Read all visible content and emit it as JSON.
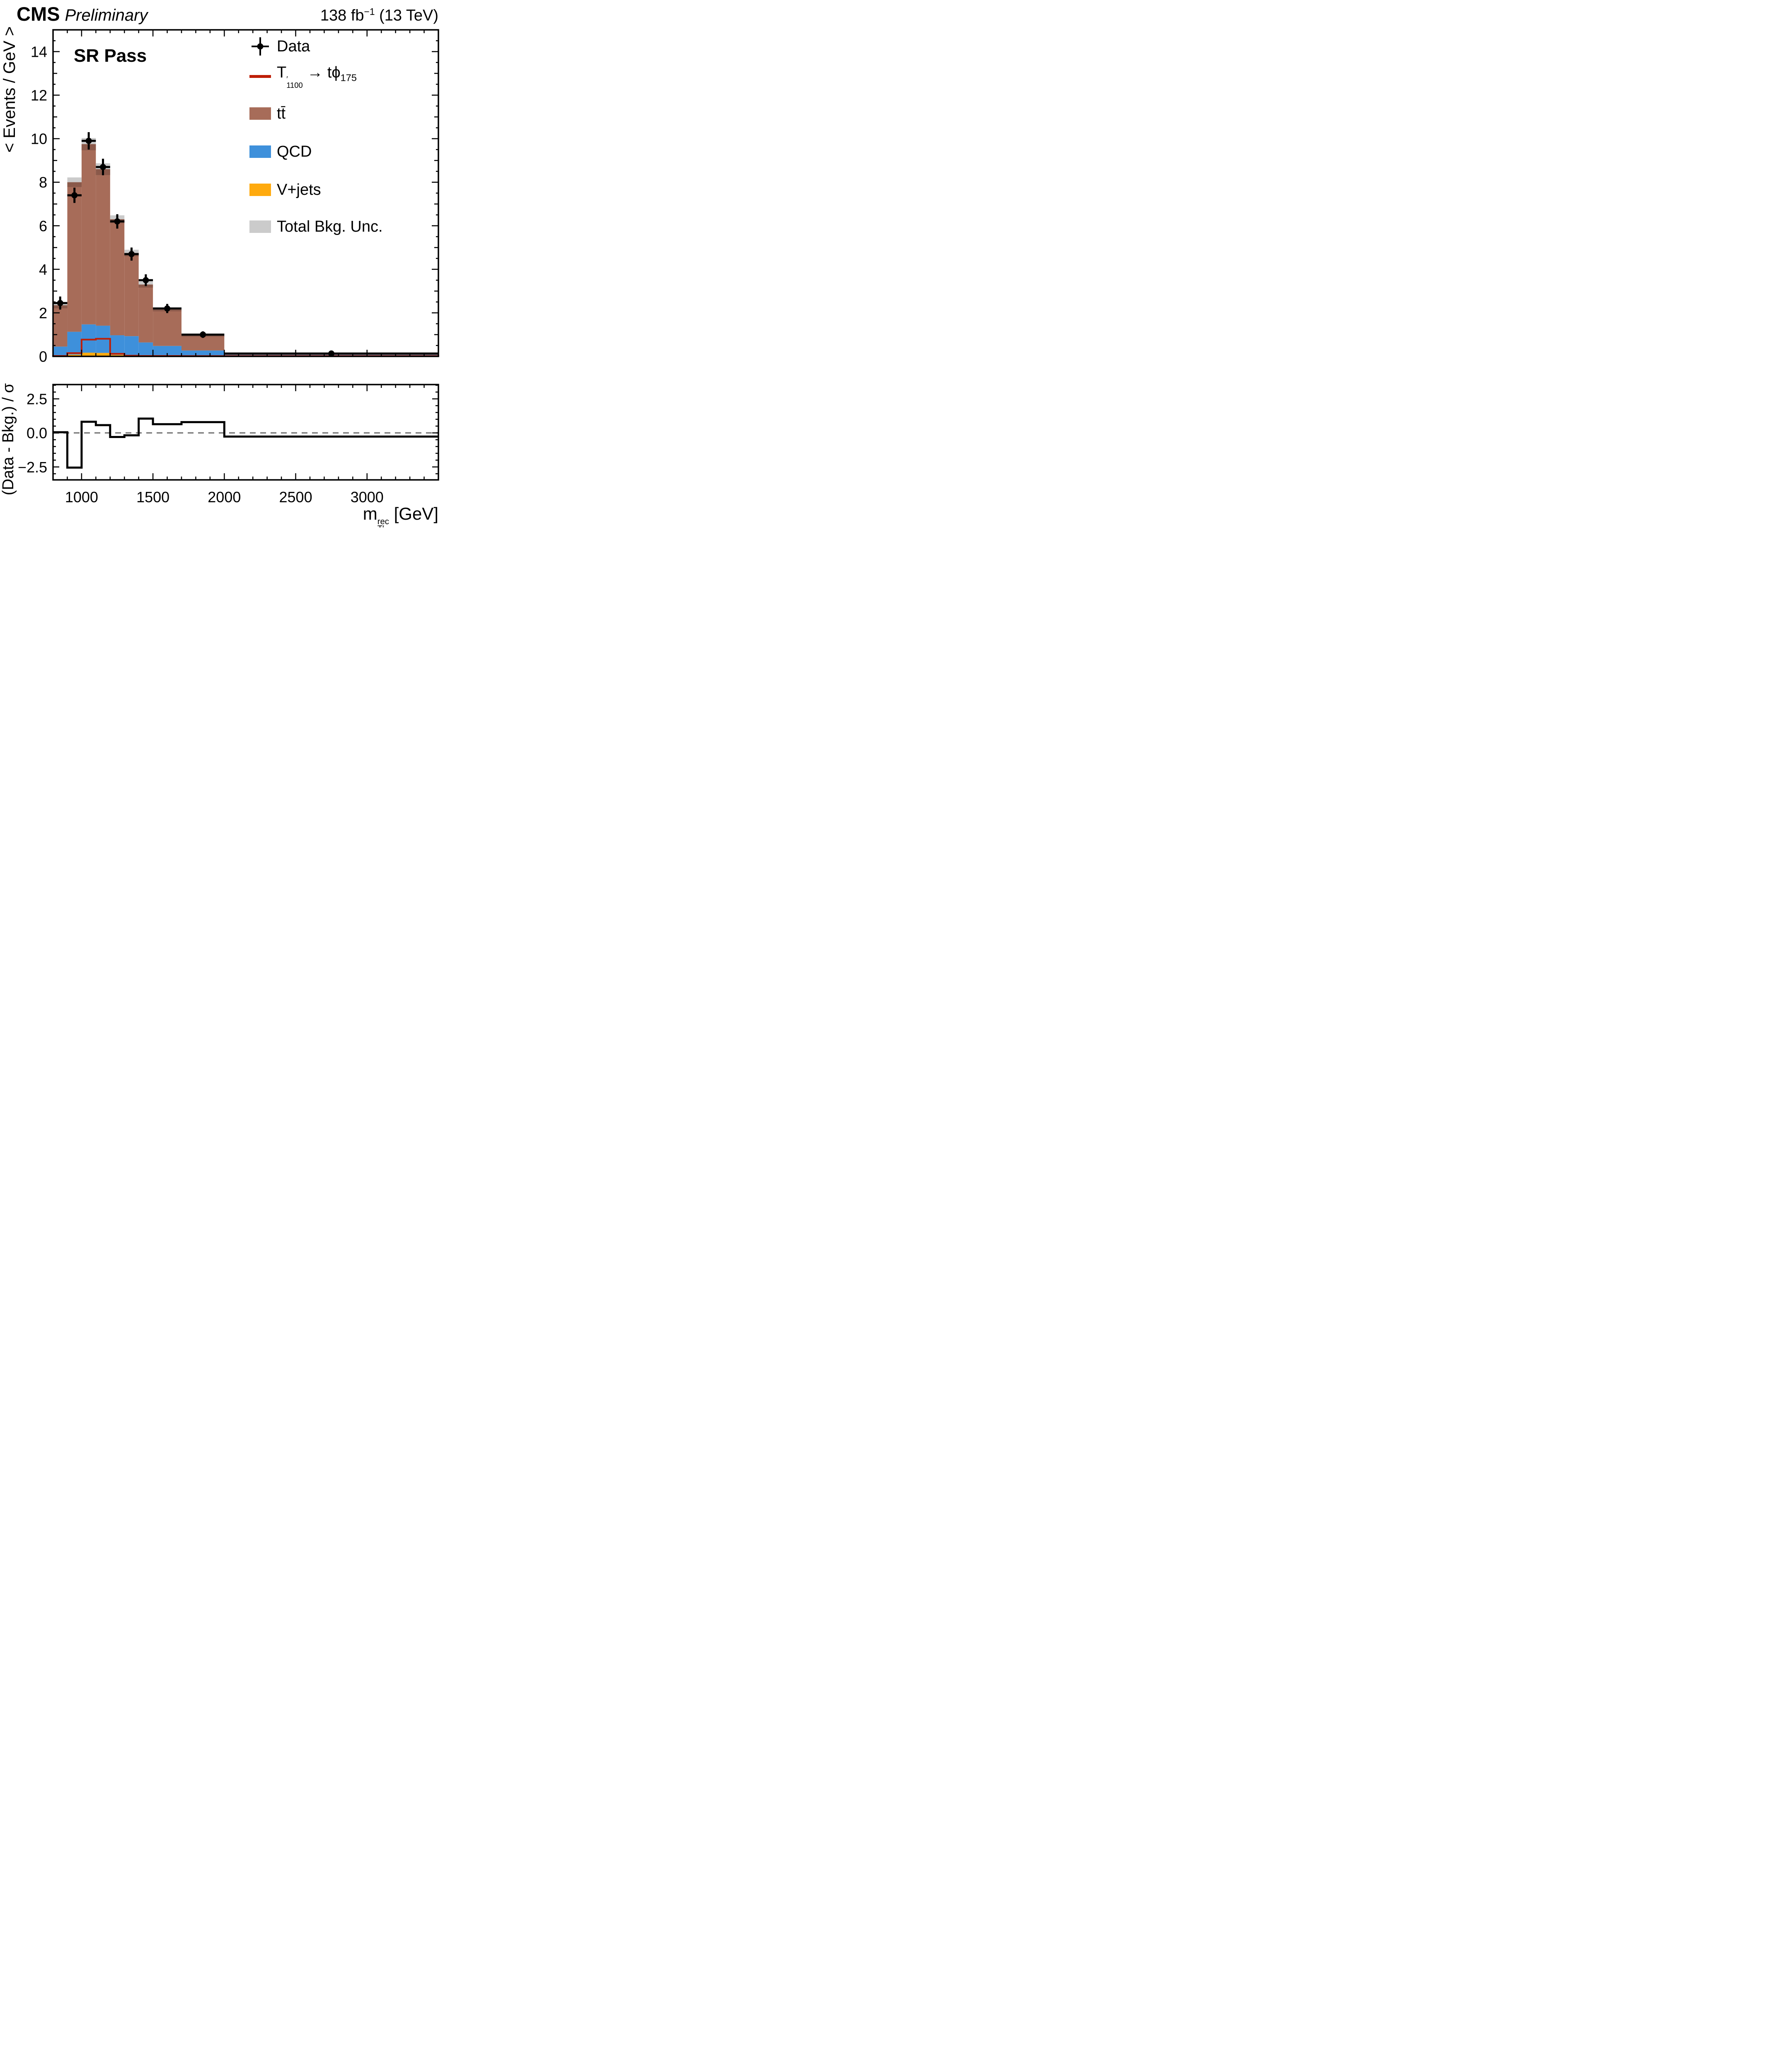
{
  "header": {
    "experiment": "CMS",
    "preliminary": "Preliminary",
    "lumi": {
      "prefix": "138 fb",
      "sup": "−1",
      "suffix": " (13 TeV)"
    }
  },
  "panel_label": "SR Pass",
  "axes": {
    "main_y_title": "< Events / GeV >",
    "ratio_y_title": "(Data - Bkg.) / σ",
    "x_title": {
      "base": "m",
      "sup": "rec",
      "sub": "T′",
      "unit": " [GeV]"
    }
  },
  "legend": {
    "items": [
      {
        "key": "data",
        "label": "Data"
      },
      {
        "key": "signal",
        "parts": {
          "base": "T",
          "prime": "′",
          "sub1": "1100",
          "arrow": " → ",
          "mid": "tϕ",
          "sub2": "175"
        }
      },
      {
        "key": "ttbar",
        "label": "tt̄"
      },
      {
        "key": "qcd",
        "label": "QCD"
      },
      {
        "key": "vjets",
        "label": "V+jets"
      },
      {
        "key": "unc",
        "label": "Total Bkg. Unc."
      }
    ]
  },
  "colors": {
    "ttbar": "#A76C59",
    "qcd": "#3E90DB",
    "vjets": "#FFAA0E",
    "unc_light": "#CBCBCB",
    "unc_dark": "#8A594A",
    "signal": "#BE1E06",
    "data": "#000000",
    "zero_line": "#808080",
    "frame": "#000000",
    "background": "#FFFFFF"
  },
  "chart_data": {
    "type": "bar",
    "subtype": "stacked-histogram-with-ratio",
    "title": "CMS Preliminary 138 fb−1 (13 TeV), SR Pass",
    "xlabel": "m_T'^rec [GeV]",
    "xlim": [
      800,
      3500
    ],
    "bin_edges": [
      800,
      900,
      1000,
      1100,
      1200,
      1300,
      1400,
      1500,
      1700,
      2000,
      3500
    ],
    "x_major_ticks": [
      1000,
      1500,
      2000,
      2500,
      3000
    ],
    "x_labels": [
      "1000",
      "1500",
      "2000",
      "2500",
      "3000"
    ],
    "x_minor_step": 100,
    "main": {
      "ylabel": "< Events / GeV >",
      "ylim": [
        0,
        15
      ],
      "y_major_ticks": [
        0,
        2,
        4,
        6,
        8,
        10,
        12,
        14
      ],
      "y_labels": [
        "0",
        "2",
        "4",
        "6",
        "8",
        "10",
        "12",
        "14"
      ],
      "y_minor_step": 0.5,
      "grid": false,
      "legend_position": "top-right"
    },
    "series": [
      {
        "key": "vjets",
        "name": "V+jets",
        "values": [
          0.02,
          0.08,
          0.17,
          0.16,
          0.07,
          0.05,
          0.04,
          0.03,
          0.02,
          0.01
        ]
      },
      {
        "key": "qcd",
        "name": "QCD",
        "values": [
          0.43,
          1.05,
          1.3,
          1.25,
          0.9,
          0.88,
          0.6,
          0.45,
          0.25,
          0.06
        ]
      },
      {
        "key": "ttbar",
        "name": "tt̄",
        "values": [
          1.9,
          6.87,
          8.28,
          7.19,
          5.33,
          3.82,
          2.66,
          1.67,
          0.68,
          0.07
        ]
      }
    ],
    "total_bkg": [
      2.35,
      8.0,
      9.75,
      8.6,
      6.3,
      4.75,
      3.3,
      2.15,
      0.95,
      0.14
    ],
    "bkg_unc": [
      0.14,
      0.22,
      0.28,
      0.27,
      0.18,
      0.15,
      0.14,
      0.08,
      0.05,
      0.02
    ],
    "signal": {
      "name": "T′1100 → tϕ175",
      "values": [
        0.02,
        0.15,
        0.77,
        0.81,
        0.12,
        0.03,
        0.02,
        0.02,
        0.015,
        0.015
      ]
    },
    "data": {
      "name": "Data",
      "y": [
        2.45,
        7.4,
        9.9,
        8.7,
        6.2,
        4.7,
        3.5,
        2.2,
        1.0,
        0.13
      ],
      "yerr": [
        0.3,
        0.35,
        0.4,
        0.38,
        0.33,
        0.3,
        0.27,
        0.21,
        0.15,
        0.05
      ]
    },
    "ratio": {
      "ylabel": "(Data - Bkg.) / σ",
      "ylim": [
        -3.45,
        3.55
      ],
      "y_major_ticks": [
        -2.5,
        0,
        2.5
      ],
      "y_labels": [
        "−2.5",
        "0.0",
        "2.5"
      ],
      "y_minor_step": 0.5,
      "zero_line": 0,
      "values": [
        0.05,
        -2.55,
        0.82,
        0.57,
        -0.3,
        -0.18,
        1.05,
        0.64,
        0.79,
        -0.27
      ]
    }
  }
}
